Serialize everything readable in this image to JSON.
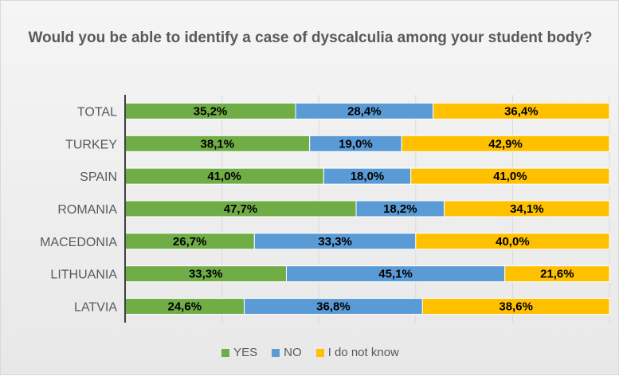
{
  "chart_data": {
    "type": "bar",
    "orientation": "horizontal",
    "stacked": "100%",
    "title": "Would you be able to identify a case of dyscalculia among your student body?",
    "categories": [
      "TOTAL",
      "TURKEY",
      "SPAIN",
      "ROMANIA",
      "MACEDONIA",
      "LITHUANIA",
      "LATVIA"
    ],
    "series": [
      {
        "name": "YES",
        "color": "#70ad47",
        "values": [
          35.2,
          38.1,
          41.0,
          47.7,
          26.7,
          33.3,
          24.6
        ],
        "labels": [
          "35,2%",
          "38,1%",
          "41,0%",
          "47,7%",
          "26,7%",
          "33,3%",
          "24,6%"
        ]
      },
      {
        "name": "NO",
        "color": "#5b9bd5",
        "values": [
          28.4,
          19.0,
          18.0,
          18.2,
          33.3,
          45.1,
          36.8
        ],
        "labels": [
          "28,4%",
          "19,0%",
          "18,0%",
          "18,2%",
          "33,3%",
          "45,1%",
          "36,8%"
        ]
      },
      {
        "name": "I do not know",
        "color": "#ffc000",
        "values": [
          36.4,
          42.9,
          41.0,
          34.1,
          40.0,
          21.6,
          38.6
        ],
        "labels": [
          "36,4%",
          "42,9%",
          "41,0%",
          "34,1%",
          "40,0%",
          "21,6%",
          "38,6%"
        ]
      }
    ],
    "xlim": [
      0,
      100
    ],
    "grid": "vertical",
    "legend_position": "bottom"
  }
}
